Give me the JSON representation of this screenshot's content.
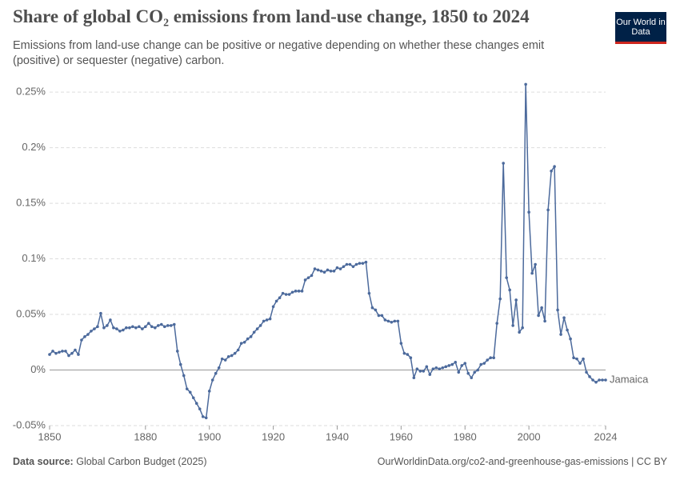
{
  "logo": "Our World in Data",
  "footer": {
    "source_label": "Data source:",
    "source": "Global Carbon Budget (2025)",
    "link": "OurWorldinData.org/co2-and-greenhouse-gas-emissions | CC BY"
  },
  "chart_data": {
    "type": "line",
    "title": "Share of global CO₂ emissions from land-use change, 1850 to 2024",
    "subtitle": "Emissions from land-use change can be positive or negative depending on whether these changes emit (positive) or sequester (negative) carbon.",
    "x": [
      1850,
      1851,
      1852,
      1853,
      1854,
      1855,
      1856,
      1857,
      1858,
      1859,
      1860,
      1861,
      1862,
      1863,
      1864,
      1865,
      1866,
      1867,
      1868,
      1869,
      1870,
      1871,
      1872,
      1873,
      1874,
      1875,
      1876,
      1877,
      1878,
      1879,
      1880,
      1881,
      1882,
      1883,
      1884,
      1885,
      1886,
      1887,
      1888,
      1889,
      1890,
      1891,
      1892,
      1893,
      1894,
      1895,
      1896,
      1897,
      1898,
      1899,
      1900,
      1901,
      1902,
      1903,
      1904,
      1905,
      1906,
      1907,
      1908,
      1909,
      1910,
      1911,
      1912,
      1913,
      1914,
      1915,
      1916,
      1917,
      1918,
      1919,
      1920,
      1921,
      1922,
      1923,
      1924,
      1925,
      1926,
      1927,
      1928,
      1929,
      1930,
      1931,
      1932,
      1933,
      1934,
      1935,
      1936,
      1937,
      1938,
      1939,
      1940,
      1941,
      1942,
      1943,
      1944,
      1945,
      1946,
      1947,
      1948,
      1949,
      1950,
      1951,
      1952,
      1953,
      1954,
      1955,
      1956,
      1957,
      1958,
      1959,
      1960,
      1961,
      1962,
      1963,
      1964,
      1965,
      1966,
      1967,
      1968,
      1969,
      1970,
      1971,
      1972,
      1973,
      1974,
      1975,
      1976,
      1977,
      1978,
      1979,
      1980,
      1981,
      1982,
      1983,
      1984,
      1985,
      1986,
      1987,
      1988,
      1989,
      1990,
      1991,
      1992,
      1993,
      1994,
      1995,
      1996,
      1997,
      1998,
      1999,
      2000,
      2001,
      2002,
      2003,
      2004,
      2005,
      2006,
      2007,
      2008,
      2009,
      2010,
      2011,
      2012,
      2013,
      2014,
      2015,
      2016,
      2017,
      2018,
      2019,
      2020,
      2021,
      2022,
      2023,
      2024
    ],
    "series": [
      {
        "name": "Jamaica",
        "color": "#4c6a9c",
        "values": [
          0.014,
          0.017,
          0.015,
          0.016,
          0.017,
          0.017,
          0.013,
          0.015,
          0.018,
          0.014,
          0.027,
          0.03,
          0.032,
          0.035,
          0.037,
          0.039,
          0.051,
          0.038,
          0.04,
          0.045,
          0.038,
          0.037,
          0.035,
          0.036,
          0.038,
          0.038,
          0.039,
          0.038,
          0.039,
          0.037,
          0.039,
          0.042,
          0.039,
          0.038,
          0.04,
          0.041,
          0.039,
          0.04,
          0.04,
          0.041,
          0.017,
          0.005,
          -0.005,
          -0.017,
          -0.02,
          -0.025,
          -0.03,
          -0.035,
          -0.042,
          -0.043,
          -0.019,
          -0.009,
          -0.003,
          0.002,
          0.01,
          0.009,
          0.012,
          0.013,
          0.015,
          0.018,
          0.024,
          0.025,
          0.028,
          0.03,
          0.034,
          0.037,
          0.04,
          0.044,
          0.045,
          0.046,
          0.057,
          0.062,
          0.065,
          0.069,
          0.068,
          0.068,
          0.07,
          0.071,
          0.071,
          0.071,
          0.081,
          0.083,
          0.085,
          0.091,
          0.09,
          0.089,
          0.088,
          0.09,
          0.089,
          0.089,
          0.092,
          0.091,
          0.093,
          0.095,
          0.095,
          0.093,
          0.095,
          0.096,
          0.096,
          0.097,
          0.069,
          0.056,
          0.054,
          0.049,
          0.049,
          0.045,
          0.044,
          0.043,
          0.044,
          0.044,
          0.024,
          0.015,
          0.014,
          0.011,
          -0.007,
          0.001,
          -0.001,
          -0.001,
          0.003,
          -0.004,
          0.001,
          0.002,
          0.001,
          0.002,
          0.003,
          0.004,
          0.005,
          0.007,
          -0.002,
          0.004,
          0.006,
          -0.003,
          -0.007,
          -0.002,
          0,
          0.005,
          0.006,
          0.009,
          0.011,
          0.011,
          0.042,
          0.064,
          0.186,
          0.083,
          0.072,
          0.04,
          0.063,
          0.034,
          0.038,
          0.257,
          0.142,
          0.087,
          0.095,
          0.049,
          0.056,
          0.044,
          0.144,
          0.179,
          0.183,
          0.054,
          0.032,
          0.047,
          0.036,
          0.028,
          0.011,
          0.01,
          0.006,
          0.01,
          -0.002,
          -0.006,
          -0.009,
          -0.011,
          -0.009,
          -0.009,
          -0.009
        ]
      }
    ],
    "xlim": [
      1850,
      2024
    ],
    "xticks": [
      1850,
      1880,
      1900,
      1920,
      1940,
      1960,
      1980,
      2000,
      2024
    ],
    "ylim": [
      -0.05,
      0.258
    ],
    "yticks": [
      {
        "value": -0.05,
        "label": "-0.05%"
      },
      {
        "value": 0,
        "label": "0%"
      },
      {
        "value": 0.05,
        "label": "0.05%"
      },
      {
        "value": 0.1,
        "label": "0.1%"
      },
      {
        "value": 0.15,
        "label": "0.15%"
      },
      {
        "value": 0.2,
        "label": "0.2%"
      },
      {
        "value": 0.25,
        "label": "0.25%"
      }
    ],
    "grid": true
  }
}
